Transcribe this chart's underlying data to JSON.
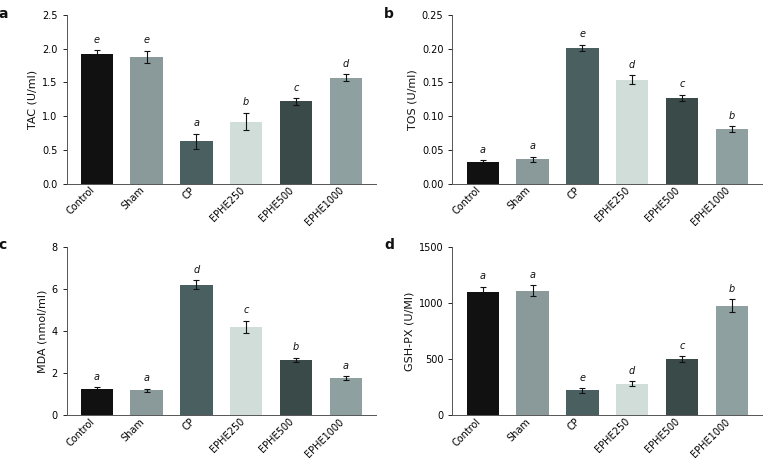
{
  "categories": [
    "Control",
    "Sham",
    "CP",
    "EPHE250",
    "EPHE500",
    "EPHE1000"
  ],
  "tac": {
    "values": [
      1.93,
      1.88,
      0.63,
      0.92,
      1.22,
      1.57
    ],
    "errors": [
      0.05,
      0.09,
      0.11,
      0.13,
      0.05,
      0.05
    ],
    "ylabel": "TAC (U/ml)",
    "ylim": [
      0,
      2.5
    ],
    "yticks": [
      0.0,
      0.5,
      1.0,
      1.5,
      2.0,
      2.5
    ],
    "sig_labels": [
      "e",
      "e",
      "a",
      "b",
      "c",
      "d"
    ]
  },
  "tos": {
    "values": [
      0.032,
      0.036,
      0.201,
      0.154,
      0.127,
      0.081
    ],
    "errors": [
      0.003,
      0.004,
      0.005,
      0.007,
      0.005,
      0.004
    ],
    "ylabel": "TOS (U/ml)",
    "ylim": [
      0,
      0.25
    ],
    "yticks": [
      0.0,
      0.05,
      0.1,
      0.15,
      0.2,
      0.25
    ],
    "sig_labels": [
      "a",
      "a",
      "e",
      "d",
      "c",
      "b"
    ]
  },
  "mda": {
    "values": [
      1.25,
      1.18,
      6.2,
      4.2,
      2.62,
      1.75
    ],
    "errors": [
      0.08,
      0.07,
      0.22,
      0.28,
      0.1,
      0.1
    ],
    "ylabel": "MDA (nmol/ml)",
    "ylim": [
      0,
      8
    ],
    "yticks": [
      0,
      2,
      4,
      6,
      8
    ],
    "sig_labels": [
      "a",
      "a",
      "d",
      "c",
      "b",
      "a"
    ]
  },
  "gsh": {
    "values": [
      1100,
      1110,
      220,
      280,
      500,
      975
    ],
    "errors": [
      45,
      45,
      20,
      20,
      25,
      55
    ],
    "ylabel": "GSH-PX (U/Ml)",
    "ylim": [
      0,
      1500
    ],
    "yticks": [
      0,
      500,
      1000,
      1500
    ],
    "sig_labels": [
      "a",
      "a",
      "e",
      "d",
      "c",
      "b"
    ]
  },
  "bar_colors": [
    "#111111",
    "#8a9a9a",
    "#4a6060",
    "#d0ddd8",
    "#3a4a48",
    "#8fa0a0"
  ],
  "background_color": "#ffffff",
  "text_color": "#111111",
  "font_size": 7,
  "sig_font_size": 7,
  "axis_label_fontsize": 8,
  "subplot_keys": [
    "tac",
    "tos",
    "mda",
    "gsh"
  ],
  "subplot_panel_labels": [
    "a",
    "b",
    "c",
    "d"
  ]
}
